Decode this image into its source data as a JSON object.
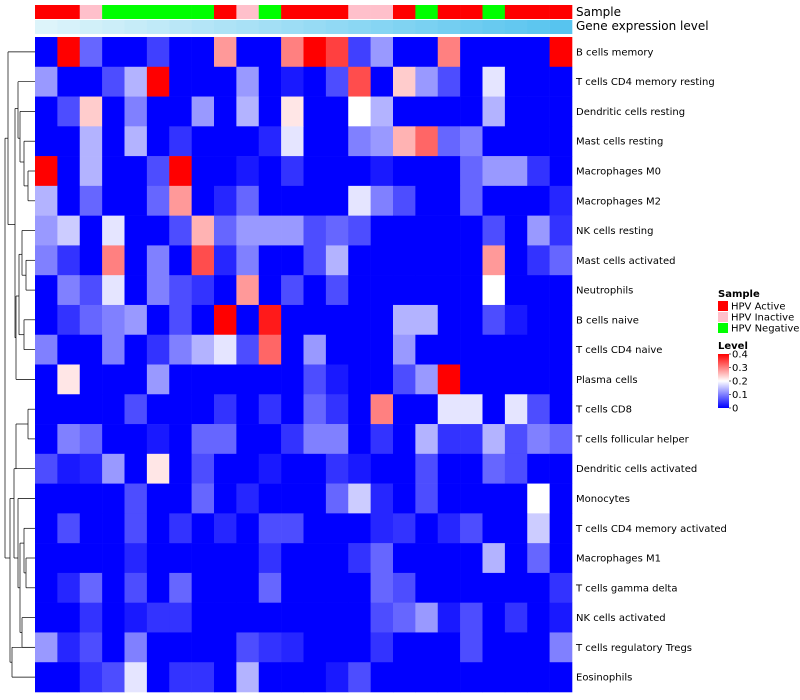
{
  "chart_data": {
    "type": "heatmap",
    "title": "",
    "annotation_tracks": [
      "Sample",
      "Gene expression level"
    ],
    "sample_groups": [
      "Active",
      "Active",
      "Inactive",
      "Negative",
      "Negative",
      "Negative",
      "Negative",
      "Negative",
      "Active",
      "Inactive",
      "Negative",
      "Active",
      "Active",
      "Active",
      "Inactive",
      "Inactive",
      "Active",
      "Negative",
      "Active",
      "Active",
      "Negative",
      "Active",
      "Active",
      "Active"
    ],
    "expression_gradient": [
      "#ddf4fa",
      "#57c4ef"
    ],
    "rows": [
      "B cells memory",
      "T cells CD4 memory resting",
      "Dendritic cells resting",
      "Mast cells resting",
      "Macrophages M0",
      "Macrophages M2",
      "NK cells resting",
      "Mast cells activated",
      "Neutrophils",
      "B cells naive",
      "T cells CD4 naive",
      "Plasma cells",
      "T cells CD8",
      "T cells follicular helper",
      "Dendritic cells activated",
      "Monocytes",
      "T cells CD4 memory activated",
      "Macrophages M1",
      "T cells gamma delta",
      "NK cells activated",
      "T cells regulatory  Tregs",
      "Eosinophils"
    ],
    "values": [
      [
        0.0,
        0.4,
        0.08,
        0.0,
        0.0,
        0.05,
        0.0,
        0.0,
        0.28,
        0.0,
        0.0,
        0.3,
        0.4,
        0.35,
        0.05,
        0.12,
        0.0,
        0.0,
        0.3,
        0.0,
        0.0,
        0.0,
        0.0,
        0.4
      ],
      [
        0.12,
        0.0,
        0.0,
        0.06,
        0.14,
        0.4,
        0.0,
        0.0,
        0.0,
        0.12,
        0.0,
        0.02,
        0.0,
        0.06,
        0.34,
        0.0,
        0.24,
        0.12,
        0.06,
        0.0,
        0.18,
        0.0,
        0.0,
        0.0
      ],
      [
        0.0,
        0.06,
        0.24,
        0.0,
        0.1,
        0.0,
        0.0,
        0.12,
        0.0,
        0.14,
        0.0,
        0.22,
        0.0,
        0.0,
        0.2,
        0.14,
        0.0,
        0.0,
        0.0,
        0.0,
        0.14,
        0.0,
        0.0,
        0.0
      ],
      [
        0.0,
        0.0,
        0.14,
        0.0,
        0.14,
        0.0,
        0.04,
        0.0,
        0.0,
        0.0,
        0.03,
        0.18,
        0.0,
        0.0,
        0.1,
        0.12,
        0.26,
        0.32,
        0.08,
        0.1,
        0.0,
        0.0,
        0.0,
        0.0
      ],
      [
        0.4,
        0.0,
        0.14,
        0.0,
        0.0,
        0.06,
        0.4,
        0.0,
        0.0,
        0.02,
        0.0,
        0.04,
        0.0,
        0.0,
        0.0,
        0.02,
        0.0,
        0.0,
        0.0,
        0.08,
        0.12,
        0.12,
        0.04,
        0.0
      ],
      [
        0.14,
        0.0,
        0.08,
        0.0,
        0.0,
        0.08,
        0.28,
        0.0,
        0.03,
        0.08,
        0.0,
        0.0,
        0.0,
        0.0,
        0.18,
        0.1,
        0.06,
        0.0,
        0.0,
        0.08,
        0.0,
        0.0,
        0.0,
        0.03
      ],
      [
        0.12,
        0.16,
        0.0,
        0.18,
        0.0,
        0.0,
        0.06,
        0.26,
        0.08,
        0.12,
        0.12,
        0.12,
        0.06,
        0.08,
        0.06,
        0.0,
        0.0,
        0.0,
        0.0,
        0.0,
        0.06,
        0.0,
        0.12,
        0.04
      ],
      [
        0.1,
        0.04,
        0.0,
        0.3,
        0.0,
        0.1,
        0.0,
        0.34,
        0.03,
        0.1,
        0.0,
        0.0,
        0.06,
        0.14,
        0.0,
        0.0,
        0.0,
        0.0,
        0.0,
        0.0,
        0.28,
        0.0,
        0.04,
        0.08
      ],
      [
        0.0,
        0.1,
        0.06,
        0.18,
        0.0,
        0.1,
        0.06,
        0.04,
        0.0,
        0.28,
        0.0,
        0.06,
        0.0,
        0.06,
        0.0,
        0.0,
        0.0,
        0.0,
        0.0,
        0.0,
        0.2,
        0.0,
        0.0,
        0.0
      ],
      [
        0.0,
        0.04,
        0.08,
        0.1,
        0.12,
        0.0,
        0.06,
        0.0,
        0.4,
        0.0,
        0.38,
        0.0,
        0.0,
        0.0,
        0.0,
        0.0,
        0.14,
        0.14,
        0.0,
        0.0,
        0.06,
        0.02,
        0.0,
        0.0
      ],
      [
        0.1,
        0.0,
        0.0,
        0.1,
        0.0,
        0.04,
        0.1,
        0.14,
        0.18,
        0.06,
        0.32,
        0.0,
        0.12,
        0.0,
        0.0,
        0.0,
        0.12,
        0.0,
        0.0,
        0.0,
        0.0,
        0.0,
        0.0,
        0.0
      ],
      [
        0.0,
        0.22,
        0.0,
        0.0,
        0.0,
        0.12,
        0.0,
        0.0,
        0.0,
        0.0,
        0.0,
        0.0,
        0.06,
        0.02,
        0.0,
        0.0,
        0.06,
        0.12,
        0.4,
        0.0,
        0.0,
        0.0,
        0.0,
        0.0
      ],
      [
        0.0,
        0.0,
        0.0,
        0.0,
        0.06,
        0.0,
        0.0,
        0.0,
        0.04,
        0.0,
        0.04,
        0.0,
        0.08,
        0.04,
        0.0,
        0.3,
        0.0,
        0.0,
        0.18,
        0.18,
        0.0,
        0.18,
        0.06,
        0.0
      ],
      [
        0.0,
        0.1,
        0.08,
        0.0,
        0.0,
        0.02,
        0.0,
        0.08,
        0.08,
        0.0,
        0.0,
        0.04,
        0.1,
        0.1,
        0.0,
        0.04,
        0.0,
        0.14,
        0.04,
        0.04,
        0.14,
        0.06,
        0.1,
        0.08
      ],
      [
        0.06,
        0.02,
        0.03,
        0.12,
        0.0,
        0.22,
        0.0,
        0.06,
        0.0,
        0.0,
        0.02,
        0.0,
        0.0,
        0.04,
        0.02,
        0.0,
        0.0,
        0.06,
        0.0,
        0.0,
        0.08,
        0.06,
        0.0,
        0.0
      ],
      [
        0.0,
        0.0,
        0.0,
        0.0,
        0.06,
        0.0,
        0.0,
        0.08,
        0.0,
        0.03,
        0.0,
        0.0,
        0.0,
        0.08,
        0.16,
        0.03,
        0.0,
        0.06,
        0.0,
        0.0,
        0.0,
        0.0,
        0.2,
        0.0
      ],
      [
        0.0,
        0.06,
        0.0,
        0.0,
        0.06,
        0.0,
        0.04,
        0.0,
        0.03,
        0.0,
        0.06,
        0.06,
        0.0,
        0.0,
        0.0,
        0.03,
        0.04,
        0.0,
        0.03,
        0.06,
        0.0,
        0.0,
        0.16,
        0.0
      ],
      [
        0.0,
        0.0,
        0.0,
        0.0,
        0.03,
        0.0,
        0.0,
        0.0,
        0.0,
        0.0,
        0.04,
        0.0,
        0.0,
        0.0,
        0.04,
        0.08,
        0.0,
        0.0,
        0.0,
        0.0,
        0.14,
        0.0,
        0.08,
        0.0
      ],
      [
        0.0,
        0.03,
        0.08,
        0.0,
        0.06,
        0.0,
        0.08,
        0.0,
        0.0,
        0.0,
        0.08,
        0.0,
        0.0,
        0.0,
        0.0,
        0.08,
        0.06,
        0.0,
        0.0,
        0.0,
        0.0,
        0.0,
        0.0,
        0.04
      ],
      [
        0.0,
        0.0,
        0.04,
        0.0,
        0.02,
        0.04,
        0.04,
        0.0,
        0.0,
        0.0,
        0.0,
        0.0,
        0.0,
        0.0,
        0.0,
        0.06,
        0.08,
        0.12,
        0.02,
        0.06,
        0.0,
        0.04,
        0.0,
        0.02
      ],
      [
        0.12,
        0.03,
        0.06,
        0.0,
        0.1,
        0.0,
        0.0,
        0.0,
        0.0,
        0.06,
        0.04,
        0.03,
        0.0,
        0.0,
        0.0,
        0.04,
        0.0,
        0.0,
        0.0,
        0.06,
        0.0,
        0.0,
        0.0,
        0.1
      ],
      [
        0.0,
        0.0,
        0.04,
        0.06,
        0.18,
        0.0,
        0.04,
        0.04,
        0.0,
        0.14,
        0.0,
        0.0,
        0.0,
        0.02,
        0.06,
        0.0,
        0.0,
        0.0,
        0.0,
        0.0,
        0.0,
        0.0,
        0.0,
        0.0
      ]
    ],
    "color_scale": {
      "min": 0,
      "max": 0.4,
      "low": "#0000ff",
      "mid": "#ffffff",
      "high": "#ff0000"
    },
    "legend": {
      "sample": {
        "title": "Sample",
        "items": [
          {
            "label": "HPV Active",
            "key": "Active",
            "color": "#ff0000"
          },
          {
            "label": "HPV Inactive",
            "key": "Inactive",
            "color": "#ffc0cb"
          },
          {
            "label": "HPV Negative",
            "key": "Negative",
            "color": "#00ff00"
          }
        ]
      },
      "level": {
        "title": "Level",
        "ticks": [
          0.4,
          0.3,
          0.2,
          0.1,
          0
        ],
        "tick_labels": [
          "0.4",
          "0.3",
          "0.2",
          "0.1",
          "0"
        ]
      }
    },
    "row_dendrogram": "left",
    "legend_position": "right"
  }
}
